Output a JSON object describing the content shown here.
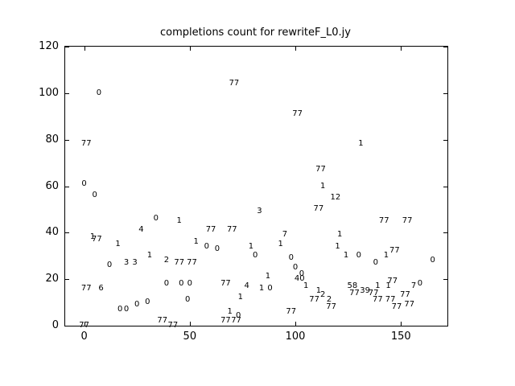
{
  "chart_data": {
    "type": "scatter",
    "title": "completions count for rewriteF_L0.jy",
    "marker_style": "text-label",
    "grid": false,
    "legend": "none",
    "xlabel": "",
    "ylabel": "",
    "xlim": [
      -9,
      172
    ],
    "ylim": [
      0,
      120
    ],
    "x_ticks": [
      0,
      50,
      100,
      150
    ],
    "y_ticks": [
      0,
      20,
      40,
      60,
      80,
      100,
      120
    ],
    "colors": {
      "background": "#ffffff",
      "axis": "#000000",
      "marker_text": "#000000"
    },
    "points": [
      {
        "x": 0,
        "y": 0,
        "label": "77"
      },
      {
        "x": 0,
        "y": 61,
        "label": "0"
      },
      {
        "x": 1,
        "y": 78,
        "label": "77"
      },
      {
        "x": 1,
        "y": 16,
        "label": "77"
      },
      {
        "x": 4,
        "y": 38,
        "label": "1"
      },
      {
        "x": 5,
        "y": 56,
        "label": "0"
      },
      {
        "x": 6,
        "y": 37,
        "label": "77"
      },
      {
        "x": 7,
        "y": 100,
        "label": "0"
      },
      {
        "x": 8,
        "y": 16,
        "label": "6"
      },
      {
        "x": 12,
        "y": 26,
        "label": "0"
      },
      {
        "x": 16,
        "y": 35,
        "label": "1"
      },
      {
        "x": 17,
        "y": 7,
        "label": "0"
      },
      {
        "x": 20,
        "y": 7,
        "label": "0"
      },
      {
        "x": 20,
        "y": 27,
        "label": "3"
      },
      {
        "x": 24,
        "y": 27,
        "label": "3"
      },
      {
        "x": 25,
        "y": 9,
        "label": "0"
      },
      {
        "x": 27,
        "y": 41,
        "label": "4"
      },
      {
        "x": 30,
        "y": 10,
        "label": "0"
      },
      {
        "x": 31,
        "y": 30,
        "label": "1"
      },
      {
        "x": 34,
        "y": 46,
        "label": "0"
      },
      {
        "x": 37,
        "y": 2,
        "label": "77"
      },
      {
        "x": 39,
        "y": 28,
        "label": "2"
      },
      {
        "x": 39,
        "y": 18,
        "label": "0"
      },
      {
        "x": 42,
        "y": 0,
        "label": "77"
      },
      {
        "x": 45,
        "y": 45,
        "label": "1"
      },
      {
        "x": 45,
        "y": 27,
        "label": "77"
      },
      {
        "x": 46,
        "y": 18,
        "label": "0"
      },
      {
        "x": 49,
        "y": 11,
        "label": "0"
      },
      {
        "x": 50,
        "y": 18,
        "label": "0"
      },
      {
        "x": 51,
        "y": 27,
        "label": "77"
      },
      {
        "x": 53,
        "y": 36,
        "label": "1"
      },
      {
        "x": 58,
        "y": 34,
        "label": "0"
      },
      {
        "x": 60,
        "y": 41,
        "label": "77"
      },
      {
        "x": 63,
        "y": 33,
        "label": "0"
      },
      {
        "x": 67,
        "y": 18,
        "label": "77"
      },
      {
        "x": 67,
        "y": 2,
        "label": "77"
      },
      {
        "x": 69,
        "y": 6,
        "label": "1"
      },
      {
        "x": 70,
        "y": 41,
        "label": "77"
      },
      {
        "x": 71,
        "y": 104,
        "label": "77"
      },
      {
        "x": 72,
        "y": 2,
        "label": "77"
      },
      {
        "x": 73,
        "y": 4,
        "label": "0"
      },
      {
        "x": 74,
        "y": 12,
        "label": "1"
      },
      {
        "x": 77,
        "y": 17,
        "label": "4"
      },
      {
        "x": 79,
        "y": 34,
        "label": "1"
      },
      {
        "x": 81,
        "y": 30,
        "label": "0"
      },
      {
        "x": 83,
        "y": 49,
        "label": "3"
      },
      {
        "x": 84,
        "y": 16,
        "label": "1"
      },
      {
        "x": 87,
        "y": 21,
        "label": "1"
      },
      {
        "x": 88,
        "y": 16,
        "label": "0"
      },
      {
        "x": 93,
        "y": 35,
        "label": "1"
      },
      {
        "x": 95,
        "y": 39,
        "label": "7"
      },
      {
        "x": 98,
        "y": 29,
        "label": "0"
      },
      {
        "x": 98,
        "y": 6,
        "label": "77"
      },
      {
        "x": 100,
        "y": 25,
        "label": "0"
      },
      {
        "x": 101,
        "y": 91,
        "label": "77"
      },
      {
        "x": 102,
        "y": 20,
        "label": "40"
      },
      {
        "x": 103,
        "y": 22,
        "label": "0"
      },
      {
        "x": 105,
        "y": 17,
        "label": "1"
      },
      {
        "x": 109,
        "y": 11,
        "label": "77"
      },
      {
        "x": 111,
        "y": 15,
        "label": "1"
      },
      {
        "x": 111,
        "y": 50,
        "label": "77"
      },
      {
        "x": 112,
        "y": 67,
        "label": "77"
      },
      {
        "x": 113,
        "y": 60,
        "label": "1"
      },
      {
        "x": 113,
        "y": 13,
        "label": "2"
      },
      {
        "x": 116,
        "y": 11,
        "label": "2"
      },
      {
        "x": 117,
        "y": 8,
        "label": "77"
      },
      {
        "x": 119,
        "y": 55,
        "label": "12"
      },
      {
        "x": 120,
        "y": 34,
        "label": "1"
      },
      {
        "x": 121,
        "y": 39,
        "label": "1"
      },
      {
        "x": 124,
        "y": 30,
        "label": "1"
      },
      {
        "x": 127,
        "y": 17,
        "label": "58"
      },
      {
        "x": 128,
        "y": 14,
        "label": "77"
      },
      {
        "x": 130,
        "y": 30,
        "label": "0"
      },
      {
        "x": 131,
        "y": 78,
        "label": "1"
      },
      {
        "x": 133,
        "y": 15,
        "label": "39"
      },
      {
        "x": 137,
        "y": 14,
        "label": "77"
      },
      {
        "x": 138,
        "y": 27,
        "label": "0"
      },
      {
        "x": 139,
        "y": 17,
        "label": "1"
      },
      {
        "x": 139,
        "y": 11,
        "label": "77"
      },
      {
        "x": 142,
        "y": 45,
        "label": "77"
      },
      {
        "x": 143,
        "y": 30,
        "label": "1"
      },
      {
        "x": 144,
        "y": 17,
        "label": "1"
      },
      {
        "x": 145,
        "y": 11,
        "label": "77"
      },
      {
        "x": 146,
        "y": 19,
        "label": "77"
      },
      {
        "x": 147,
        "y": 32,
        "label": "77"
      },
      {
        "x": 148,
        "y": 8,
        "label": "77"
      },
      {
        "x": 152,
        "y": 13,
        "label": "77"
      },
      {
        "x": 153,
        "y": 45,
        "label": "77"
      },
      {
        "x": 154,
        "y": 9,
        "label": "77"
      },
      {
        "x": 156,
        "y": 17,
        "label": "7"
      },
      {
        "x": 159,
        "y": 18,
        "label": "0"
      },
      {
        "x": 165,
        "y": 28,
        "label": "0"
      }
    ]
  }
}
